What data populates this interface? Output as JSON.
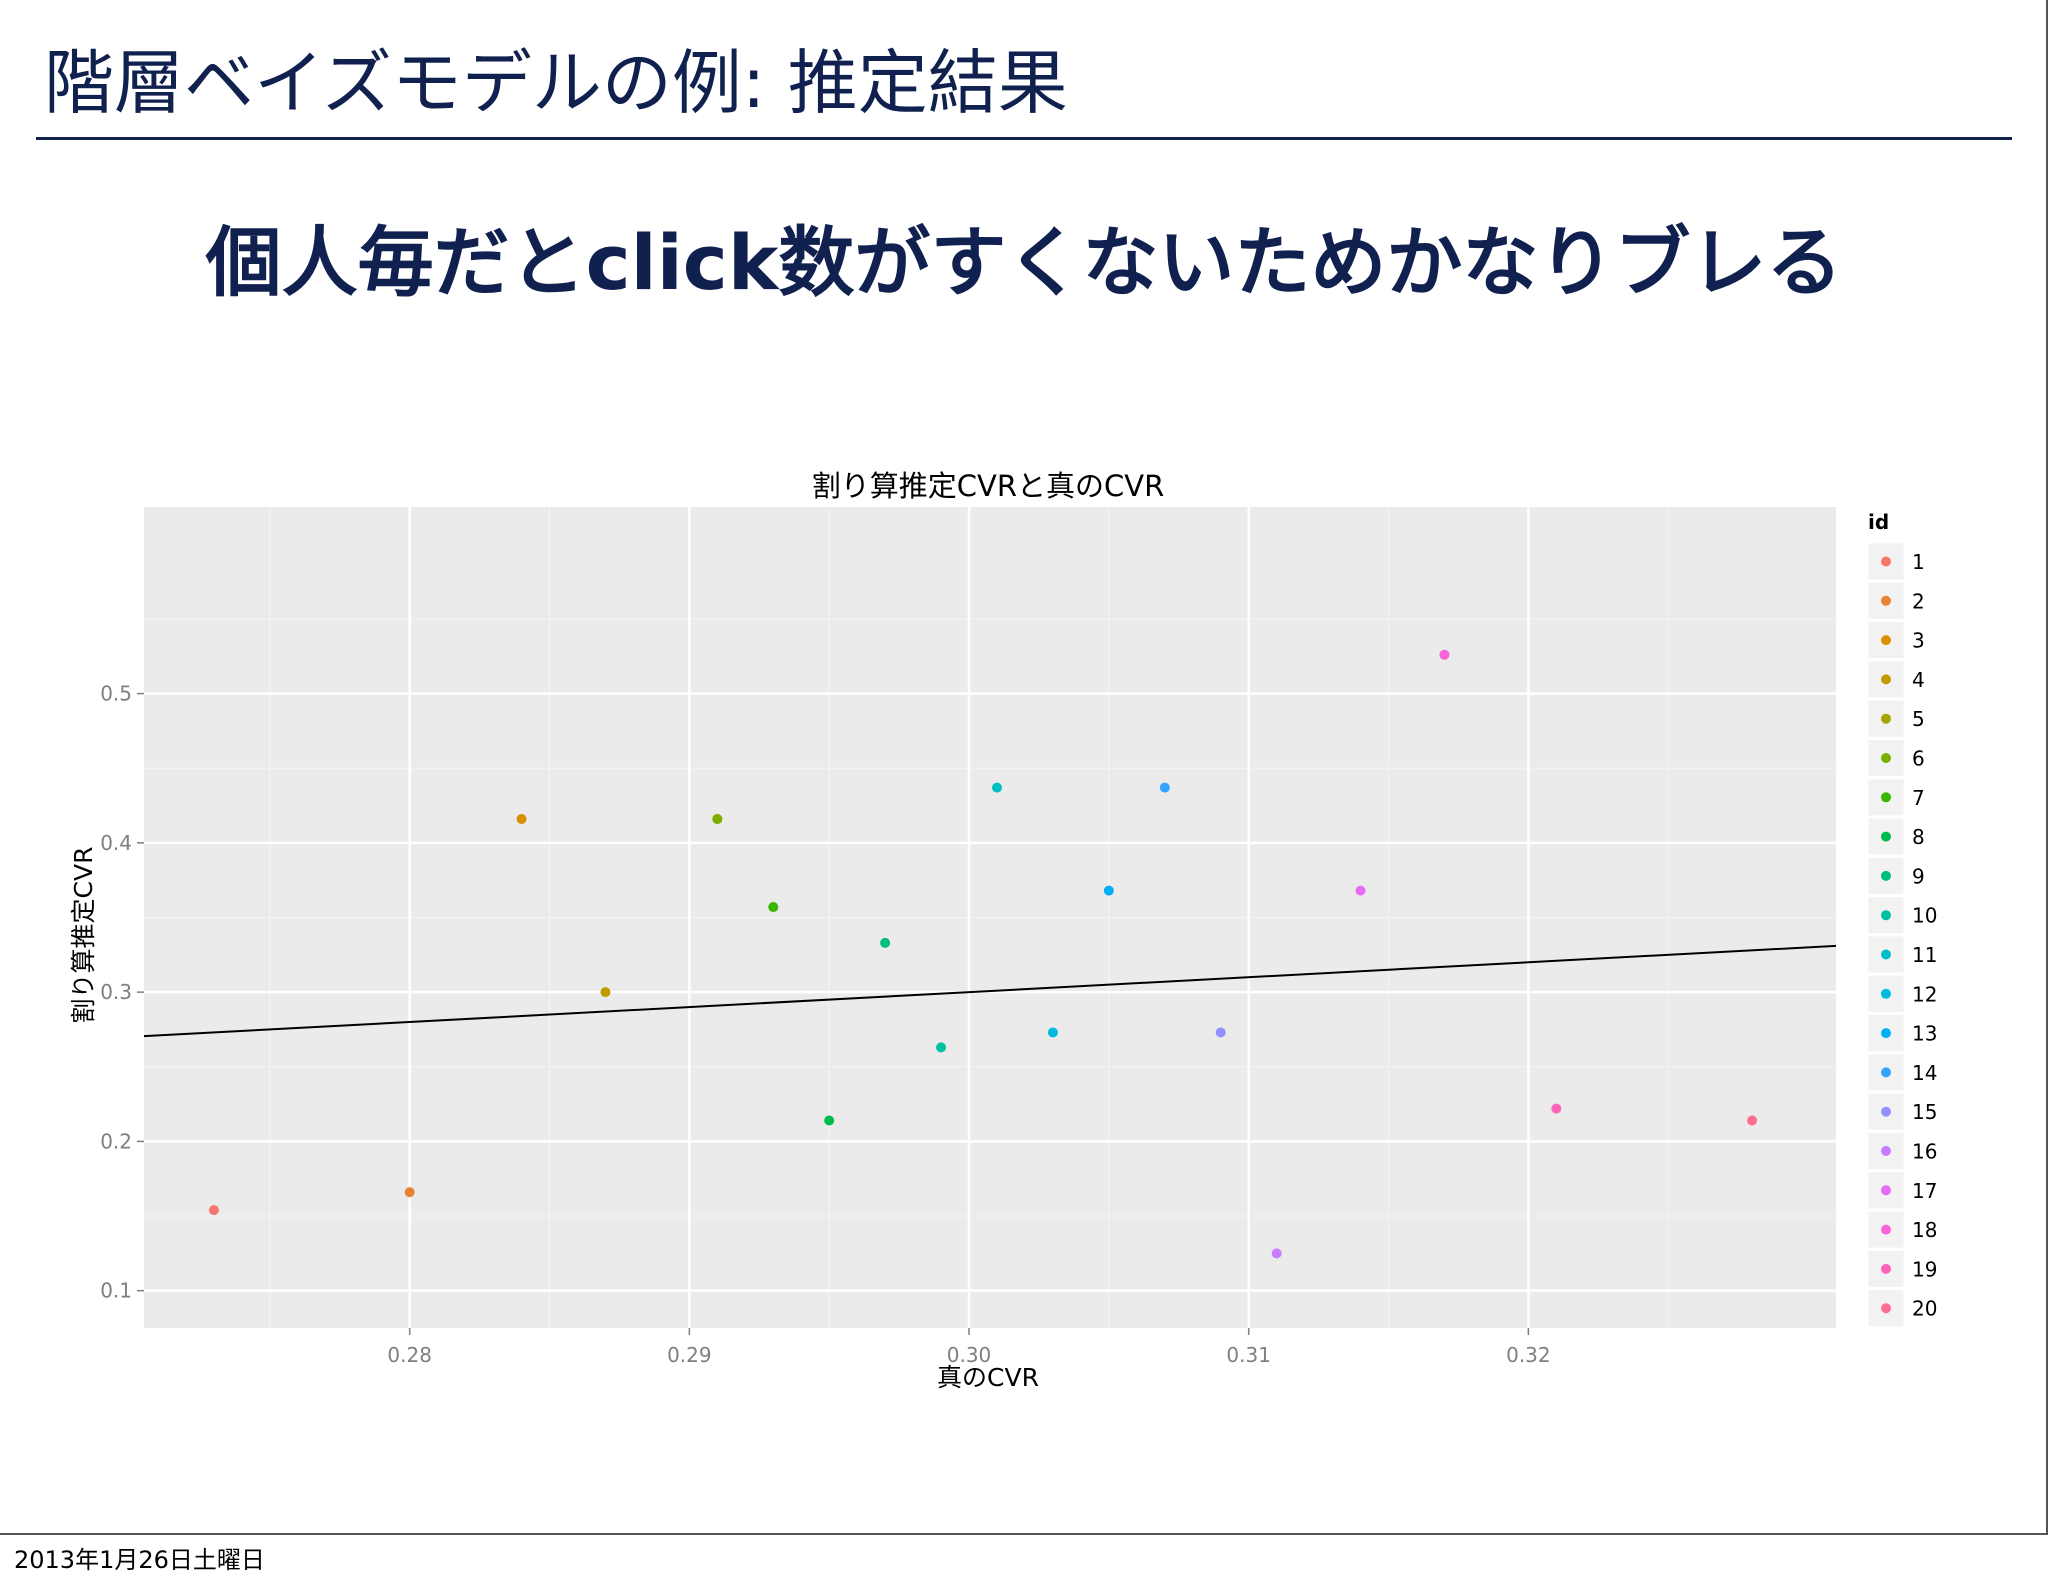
{
  "slide": {
    "title": "階層ベイズモデルの例: 推定結果",
    "subtitle": "個人毎だとclick数がすくないためかなりブレる",
    "footer_date": "2013年1月26日土曜日",
    "title_color": "#11214f"
  },
  "chart_data": {
    "type": "scatter",
    "title": "割り算推定CVRと真のCVR",
    "xlabel": "真のCVR",
    "ylabel": "割り算推定CVR",
    "xlim": [
      0.2705,
      0.331
    ],
    "ylim": [
      0.075,
      0.625
    ],
    "x_ticks": [
      0.28,
      0.29,
      0.3,
      0.31,
      0.32
    ],
    "x_tick_labels": [
      "0.28",
      "0.29",
      "0.30",
      "0.31",
      "0.32"
    ],
    "y_ticks": [
      0.1,
      0.2,
      0.3,
      0.4,
      0.5
    ],
    "y_tick_labels": [
      "0.1",
      "0.2",
      "0.3",
      "0.4",
      "0.5"
    ],
    "grid": true,
    "legend_title": "id",
    "legend_position": "right",
    "reference_line": {
      "slope": 1,
      "intercept": 0
    },
    "points": [
      {
        "id": "1",
        "x": 0.273,
        "y": 0.154,
        "color": "#F8766D"
      },
      {
        "id": "2",
        "x": 0.28,
        "y": 0.166,
        "color": "#EA8331"
      },
      {
        "id": "3",
        "x": 0.284,
        "y": 0.416,
        "color": "#D89000"
      },
      {
        "id": "4",
        "x": 0.287,
        "y": 0.3,
        "color": "#C09B00"
      },
      {
        "id": "5",
        "x": 0.291,
        "y": 0.416,
        "color": "#A3A500"
      },
      {
        "id": "6",
        "x": 0.291,
        "y": 0.416,
        "color": "#7CAE00"
      },
      {
        "id": "7",
        "x": 0.293,
        "y": 0.357,
        "color": "#39B600"
      },
      {
        "id": "8",
        "x": 0.295,
        "y": 0.214,
        "color": "#00BB4E"
      },
      {
        "id": "9",
        "x": 0.297,
        "y": 0.333,
        "color": "#00BF7D"
      },
      {
        "id": "10",
        "x": 0.299,
        "y": 0.263,
        "color": "#00C1A3"
      },
      {
        "id": "11",
        "x": 0.301,
        "y": 0.437,
        "color": "#00BFC4"
      },
      {
        "id": "12",
        "x": 0.303,
        "y": 0.273,
        "color": "#00BAE0"
      },
      {
        "id": "13",
        "x": 0.305,
        "y": 0.368,
        "color": "#00B0F6"
      },
      {
        "id": "14",
        "x": 0.307,
        "y": 0.437,
        "color": "#35A2FF"
      },
      {
        "id": "15",
        "x": 0.309,
        "y": 0.273,
        "color": "#9590FF"
      },
      {
        "id": "16",
        "x": 0.311,
        "y": 0.125,
        "color": "#C77CFF"
      },
      {
        "id": "17",
        "x": 0.314,
        "y": 0.368,
        "color": "#E76BF3"
      },
      {
        "id": "18",
        "x": 0.317,
        "y": 0.526,
        "color": "#FA62DB"
      },
      {
        "id": "19",
        "x": 0.321,
        "y": 0.222,
        "color": "#FF62BC"
      },
      {
        "id": "20",
        "x": 0.328,
        "y": 0.214,
        "color": "#FF6C91"
      }
    ],
    "colors": {
      "panel_background": "#EBEBEB",
      "grid": "#FFFFFF",
      "line": "#000000"
    }
  }
}
